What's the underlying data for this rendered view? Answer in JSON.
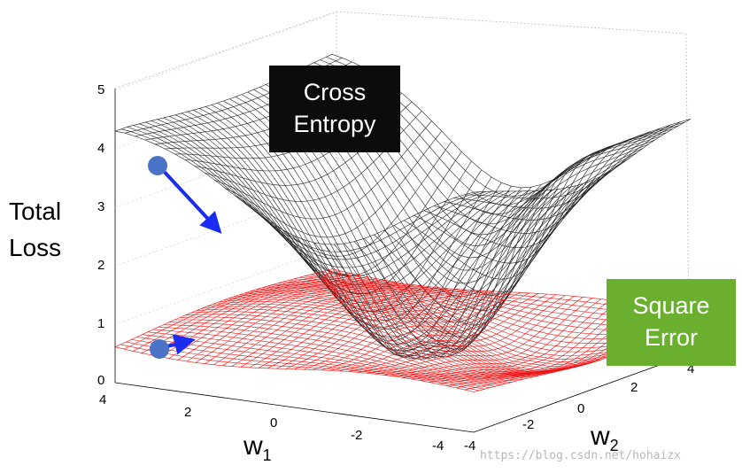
{
  "figure": {
    "y_axis_title_line1": "Total",
    "y_axis_title_line2": "Loss",
    "x_axis_title": "w",
    "x_axis_sub": "1",
    "z_axis_title": "w",
    "z_axis_sub": "2",
    "y_ticks": [
      "5",
      "4",
      "3",
      "2",
      "1",
      "0"
    ],
    "w1_ticks": [
      "4",
      "2",
      "0",
      "-2",
      "-4"
    ],
    "w2_ticks": [
      "-4",
      "-2",
      "0",
      "2",
      "4"
    ],
    "cross_entropy_line1": "Cross",
    "cross_entropy_line2": "Entropy",
    "square_error_line1": "Square",
    "square_error_line2": "Error",
    "watermark": "https://blog.csdn.net/hohaizx"
  },
  "colors": {
    "cross_entropy_mesh": "#222222",
    "square_error_mesh": "#ee1111",
    "marker": "#4a73c8",
    "arrow": "#1a2cf0",
    "cross_entropy_box": "#0c0c0c",
    "square_error_box": "#6ab02e"
  }
}
